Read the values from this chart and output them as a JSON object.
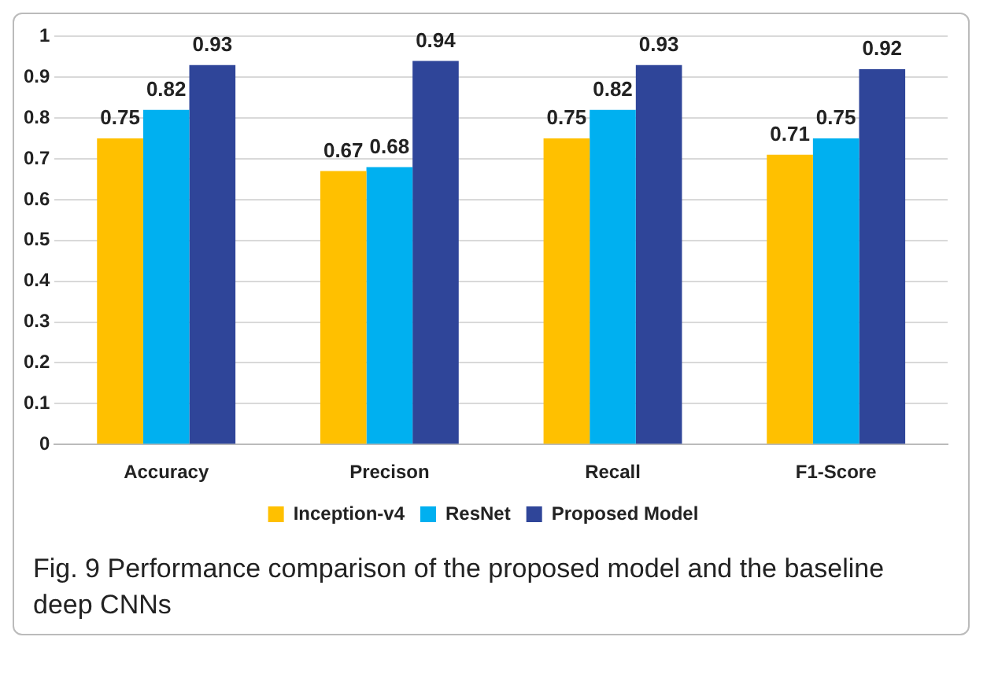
{
  "chart_data": {
    "type": "bar",
    "categories": [
      "Accuracy",
      "Precison",
      "Recall",
      "F1-Score"
    ],
    "series": [
      {
        "name": "Inception-v4",
        "color": "#ffc000",
        "values": [
          0.75,
          0.67,
          0.75,
          0.71
        ]
      },
      {
        "name": "ResNet",
        "color": "#00b0f0",
        "values": [
          0.82,
          0.68,
          0.82,
          0.75
        ]
      },
      {
        "name": "Proposed Model",
        "color": "#2f4599",
        "values": [
          0.93,
          0.94,
          0.93,
          0.92
        ]
      }
    ],
    "ylim": [
      0,
      1
    ],
    "yticks": [
      0,
      0.1,
      0.2,
      0.3,
      0.4,
      0.5,
      0.6,
      0.7,
      0.8,
      0.9,
      1
    ],
    "grid": "y",
    "legend": "bottom",
    "data_labels": true,
    "annotations": [
      "Fig. 9  Performance comparison of the proposed model and the baseline deep CNNs"
    ]
  }
}
